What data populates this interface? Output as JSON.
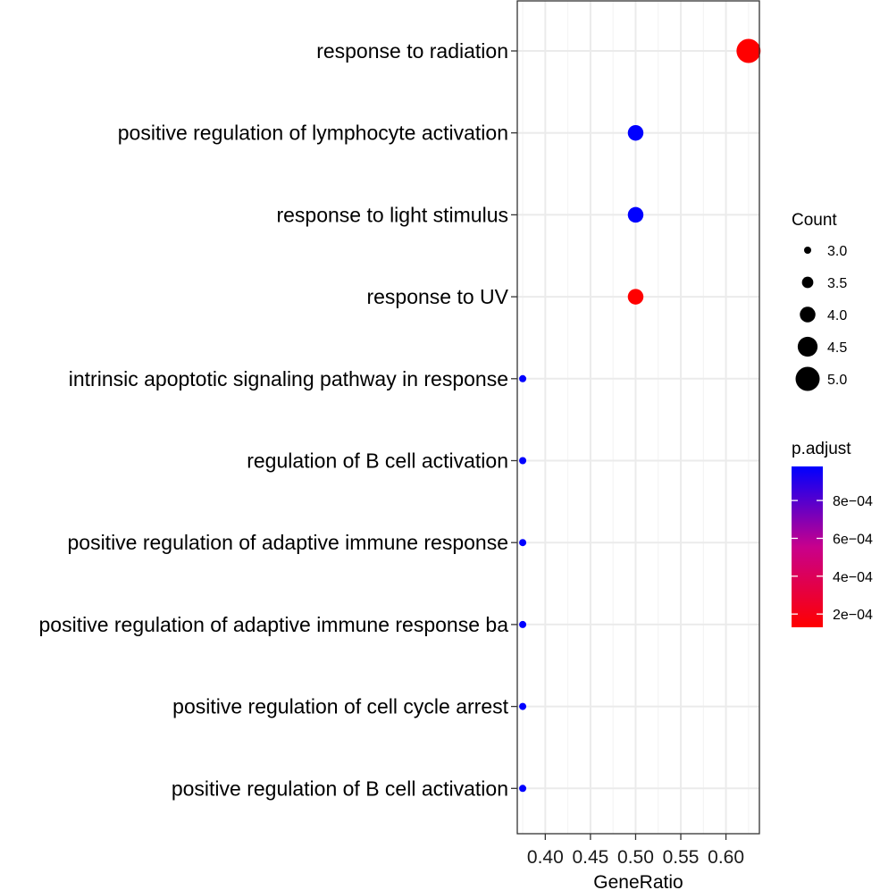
{
  "chart_data": {
    "type": "scatter",
    "xlabel": "GeneRatio",
    "xlim": [
      0.369,
      0.637
    ],
    "x_ticks": [
      0.4,
      0.45,
      0.5,
      0.55,
      0.6
    ],
    "x_tick_labels": [
      "0.40",
      "0.45",
      "0.50",
      "0.55",
      "0.60"
    ],
    "grid": true,
    "categories": [
      "response to radiation",
      "positive regulation of lymphocyte activation",
      "response to light stimulus",
      "response to UV",
      "intrinsic apoptotic signaling pathway in response ",
      "regulation of B cell activation",
      "positive regulation of adaptive immune response",
      "positive regulation of adaptive immune response ba",
      "positive regulation of cell cycle arrest",
      "positive regulation of B cell activation"
    ],
    "points": [
      {
        "term": "response to radiation",
        "gene_ratio": 0.625,
        "count": 5,
        "p_adjust": 0.00013
      },
      {
        "term": "positive regulation of lymphocyte activation",
        "gene_ratio": 0.5,
        "count": 4,
        "p_adjust": 0.00098
      },
      {
        "term": "response to light stimulus",
        "gene_ratio": 0.5,
        "count": 4,
        "p_adjust": 0.00098
      },
      {
        "term": "response to UV",
        "gene_ratio": 0.5,
        "count": 4,
        "p_adjust": 0.00013
      },
      {
        "term": "intrinsic apoptotic signaling pathway in response ",
        "gene_ratio": 0.375,
        "count": 3,
        "p_adjust": 0.00098
      },
      {
        "term": "regulation of B cell activation",
        "gene_ratio": 0.375,
        "count": 3,
        "p_adjust": 0.00098
      },
      {
        "term": "positive regulation of adaptive immune response",
        "gene_ratio": 0.375,
        "count": 3,
        "p_adjust": 0.00098
      },
      {
        "term": "positive regulation of adaptive immune response ba",
        "gene_ratio": 0.375,
        "count": 3,
        "p_adjust": 0.00098
      },
      {
        "term": "positive regulation of cell cycle arrest",
        "gene_ratio": 0.375,
        "count": 3,
        "p_adjust": 0.00098
      },
      {
        "term": "positive regulation of B cell activation",
        "gene_ratio": 0.375,
        "count": 3,
        "p_adjust": 0.00098
      }
    ],
    "legend_size": {
      "title": "Count",
      "values": [
        3.0,
        3.5,
        4.0,
        4.5,
        5.0
      ],
      "labels": [
        "3.0",
        "3.5",
        "4.0",
        "4.5",
        "5.0"
      ]
    },
    "legend_color": {
      "title": "p.adjust",
      "low_color": "#FF0000",
      "high_color": "#0000FF",
      "range": [
        0.00013,
        0.00098
      ],
      "breaks": [
        0.0002,
        0.0004,
        0.0006,
        0.0008
      ],
      "labels": [
        "2e−04",
        "4e−04",
        "6e−04",
        "8e−04"
      ]
    },
    "legend_position": "right"
  }
}
